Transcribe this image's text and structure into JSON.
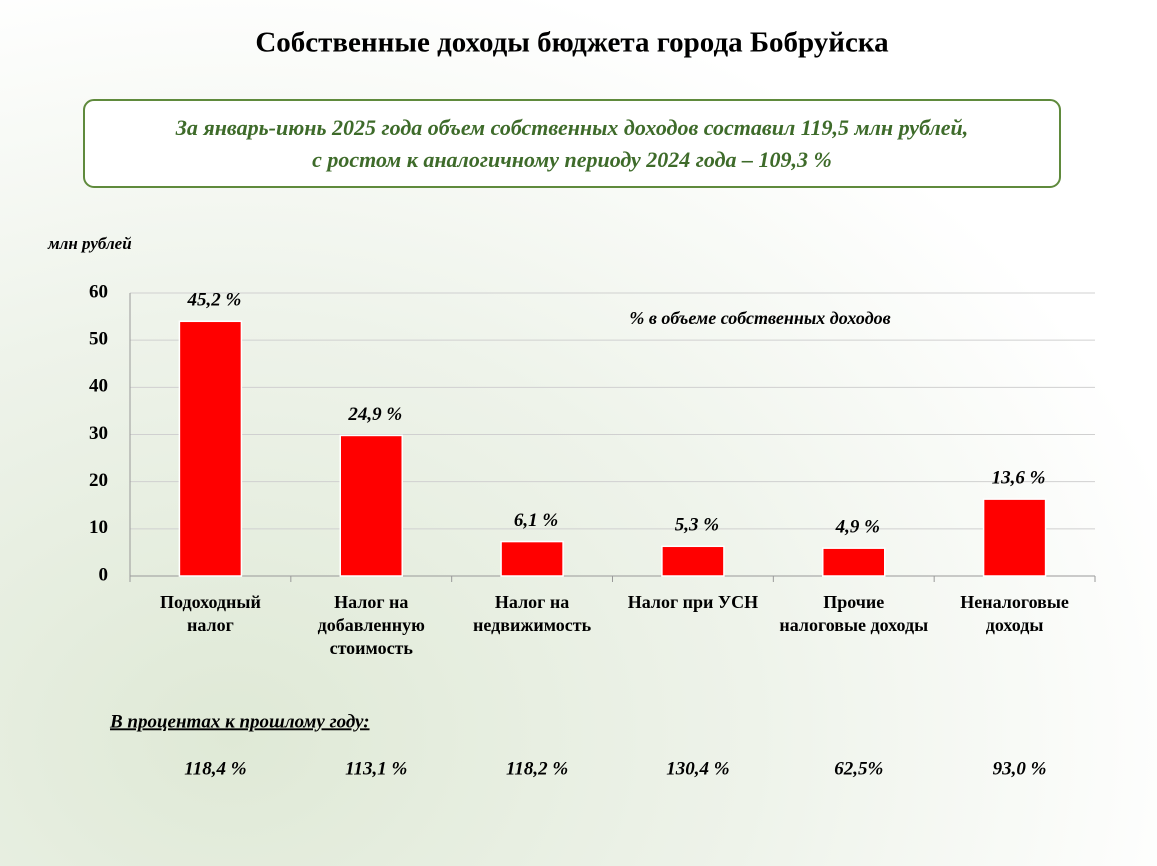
{
  "chart_data": {
    "type": "bar",
    "title": "Собственные доходы бюджета города Бобруйска",
    "subtitle": [
      "За январь-июнь 2025 года объем собственных доходов составил 119,5 млн рублей,",
      "с ростом к аналогичному периоду 2024 года – 109,3 %"
    ],
    "y_label": "млн рублей",
    "annotation": "%  в объеме собственных доходов",
    "categories": [
      "Подоходный налог",
      "Налог на добавленную стоимость",
      "Налог на недвижимость",
      "Налог при УСН",
      "Прочие налоговые доходы",
      "Неналоговые доходы"
    ],
    "values": [
      54,
      29.8,
      7.3,
      6.3,
      5.9,
      16.3
    ],
    "shares": [
      "45,2 %",
      "24,9 %",
      "6,1 %",
      "5,3 %",
      "4,9 %",
      "13,6 %"
    ],
    "color": "#ff0000",
    "ylim": [
      0,
      60
    ],
    "yticks": [
      0,
      10,
      20,
      30,
      40,
      50,
      60
    ],
    "grid": true,
    "growth_title": "В процентах к прошлому году:",
    "growth": [
      "118,4 %",
      "113,1 %",
      "118,2 %",
      "130,4 %",
      "62,5%",
      "93,0 %"
    ]
  }
}
